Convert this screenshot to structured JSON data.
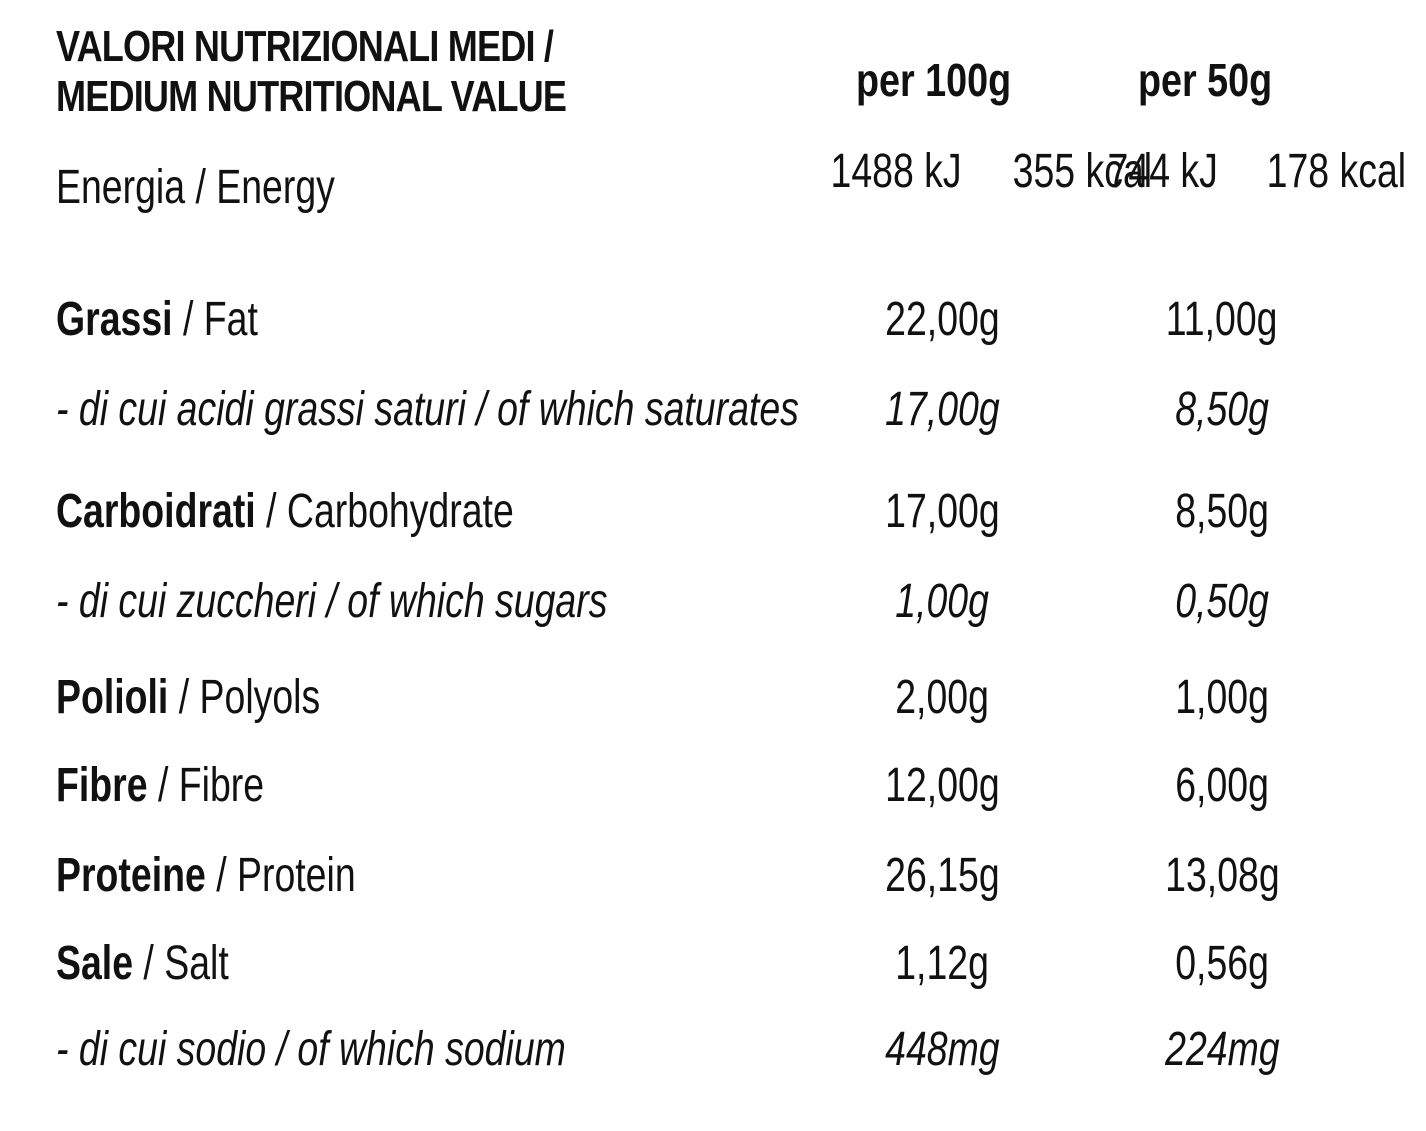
{
  "header": {
    "title_line1": "VALORI NUTRIZIONALI MEDI /",
    "title_line2": "MEDIUM NUTRITIONAL VALUE",
    "col1": "per 100g",
    "col2": "per 50g"
  },
  "rows": [
    {
      "it": "Energia / Energy",
      "en": "",
      "v1": [
        "1488 kJ",
        "355 kcal"
      ],
      "v2": [
        "744 kJ",
        "178 kcal"
      ]
    },
    {
      "it": "Grassi",
      "en": "/ Fat",
      "v1": "22,00g",
      "v2": "11,00g"
    },
    {
      "it": "- di cui acidi grassi saturi / of which saturates",
      "en": "",
      "v1": "17,00g",
      "v2": "8,50g"
    },
    {
      "it": "Carboidrati",
      "en": "/ Carbohydrate",
      "v1": "17,00g",
      "v2": "8,50g"
    },
    {
      "it": "- di cui zuccheri / of which sugars",
      "en": "",
      "v1": "1,00g",
      "v2": "0,50g"
    },
    {
      "it": "Polioli",
      "en": "/ Polyols",
      "v1": "2,00g",
      "v2": "1,00g"
    },
    {
      "it": "Fibre",
      "en": "/ Fibre",
      "v1": "12,00g",
      "v2": "6,00g"
    },
    {
      "it": "Proteine",
      "en": "/ Protein",
      "v1": "26,15g",
      "v2": "13,08g"
    },
    {
      "it": "Sale",
      "en": "/ Salt",
      "v1": "1,12g",
      "v2": "0,56g"
    },
    {
      "it": "- di cui sodio / of which sodium",
      "en": "",
      "v1": "448mg",
      "v2": "224mg"
    }
  ]
}
